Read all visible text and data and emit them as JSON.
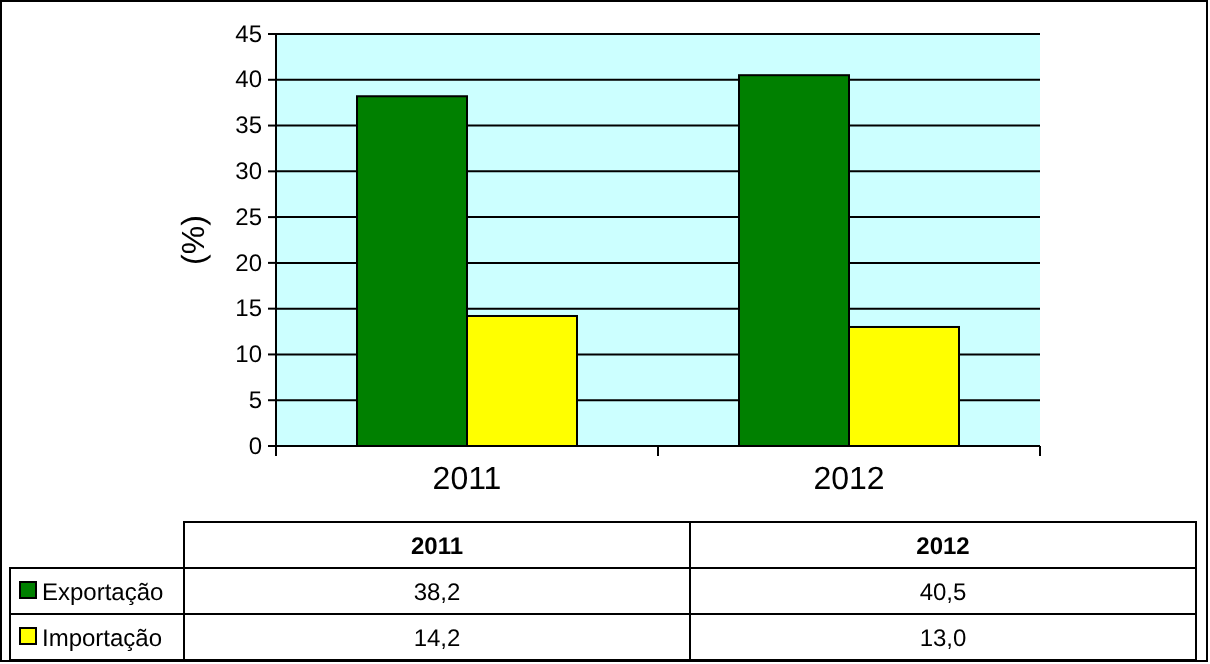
{
  "chart_data": {
    "type": "bar",
    "ylabel": "(%)",
    "categories": [
      "2011",
      "2012"
    ],
    "series": [
      {
        "name": "Exportação",
        "color": "#008000",
        "values": [
          38.2,
          40.5
        ],
        "value_labels": [
          "38,2",
          "40,5"
        ]
      },
      {
        "name": "Importação",
        "color": "#ffff00",
        "values": [
          14.2,
          13.0
        ],
        "value_labels": [
          "14,2",
          "13,0"
        ]
      }
    ],
    "ylim": [
      0,
      45
    ],
    "yticks": [
      0,
      5,
      10,
      15,
      20,
      25,
      30,
      35,
      40,
      45
    ],
    "grid": "y",
    "legend": "bottom"
  }
}
